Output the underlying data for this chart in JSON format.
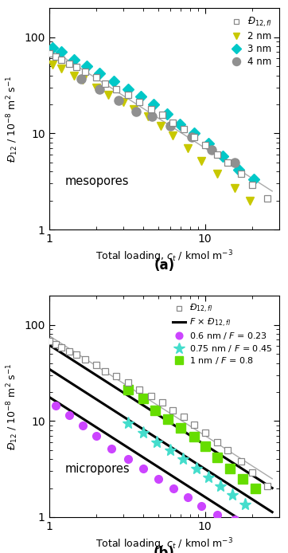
{
  "panel_a": {
    "annotation": "mesopores",
    "fl_x": [
      1.0,
      1.1,
      1.2,
      1.35,
      1.5,
      1.7,
      2.0,
      2.3,
      2.7,
      3.2,
      3.8,
      4.5,
      5.3,
      6.2,
      7.3,
      8.5,
      10.0,
      12.0,
      14.0,
      17.0,
      20.0,
      25.0
    ],
    "fl_y": [
      68,
      63,
      58,
      53,
      49,
      44,
      38,
      33,
      29,
      25,
      21,
      18,
      15.5,
      13.0,
      11.0,
      9.2,
      7.5,
      6.0,
      5.0,
      3.8,
      2.9,
      2.1
    ],
    "nm2_x": [
      1.05,
      1.2,
      1.45,
      1.65,
      2.0,
      2.4,
      3.0,
      3.5,
      4.3,
      5.2,
      6.2,
      7.8,
      9.5,
      12.0,
      15.5,
      19.5
    ],
    "nm2_y": [
      52,
      47,
      40,
      36,
      30,
      25,
      21,
      18,
      15,
      12,
      9.5,
      7.0,
      5.2,
      3.8,
      2.7,
      2.0
    ],
    "nm3_x": [
      1.05,
      1.2,
      1.45,
      1.75,
      2.1,
      2.6,
      3.2,
      3.9,
      4.7,
      5.7,
      6.9,
      8.5,
      10.5,
      13.0,
      16.5,
      20.5
    ],
    "nm3_y": [
      78,
      70,
      58,
      50,
      42,
      35,
      29,
      24,
      20,
      16,
      12.5,
      10.0,
      7.8,
      5.8,
      4.2,
      3.3
    ],
    "nm4_x": [
      1.6,
      2.1,
      2.8,
      3.6,
      4.6,
      6.0,
      8.2,
      11.0,
      15.5
    ],
    "nm4_y": [
      37,
      29,
      22,
      17,
      15,
      12,
      9.2,
      6.8,
      5.0
    ],
    "fl_line_color": "#aaaaaa",
    "fl_marker_color": "#888888",
    "nm2_color": "#c8c800",
    "nm3_color": "#00c8c8",
    "nm4_color": "#909090"
  },
  "panel_b": {
    "annotation": "micropores",
    "fl_x": [
      1.0,
      1.1,
      1.2,
      1.35,
      1.5,
      1.7,
      2.0,
      2.3,
      2.7,
      3.2,
      3.8,
      4.5,
      5.3,
      6.2,
      7.3,
      8.5,
      10.0,
      12.0,
      14.0,
      17.0,
      20.0,
      25.0
    ],
    "fl_y": [
      68,
      63,
      58,
      53,
      49,
      44,
      38,
      33,
      29,
      25,
      21,
      18,
      15.5,
      13.0,
      11.0,
      9.2,
      7.5,
      6.0,
      5.0,
      3.8,
      2.9,
      2.1
    ],
    "F_values": [
      0.8,
      0.45,
      0.23
    ],
    "nm06_x": [
      1.1,
      1.35,
      1.65,
      2.0,
      2.5,
      3.2,
      4.0,
      5.0,
      6.3,
      7.8,
      9.5,
      12.0,
      15.5,
      19.0
    ],
    "nm06_y": [
      14.5,
      11.5,
      9.0,
      7.0,
      5.2,
      4.0,
      3.2,
      2.5,
      2.0,
      1.6,
      1.3,
      1.05,
      0.95,
      0.85
    ],
    "nm075_x": [
      3.2,
      4.0,
      4.9,
      6.0,
      7.2,
      8.8,
      10.5,
      12.5,
      15.0,
      18.0
    ],
    "nm075_y": [
      9.5,
      7.5,
      6.0,
      5.0,
      4.0,
      3.2,
      2.6,
      2.1,
      1.7,
      1.35
    ],
    "nm1_x": [
      3.2,
      4.0,
      4.8,
      5.8,
      7.0,
      8.5,
      10.0,
      12.0,
      14.5,
      17.5,
      21.0
    ],
    "nm1_y": [
      21,
      17,
      13,
      10.5,
      8.5,
      6.8,
      5.5,
      4.2,
      3.2,
      2.5,
      2.0
    ],
    "fl_line_color": "#aaaaaa",
    "fl_marker_color": "#888888",
    "nm06_color": "#cc44ff",
    "nm075_color": "#44ddcc",
    "nm1_color": "#66dd00"
  },
  "ylabel": "Đ$_{12}$ / 10$^{-8}$ m$^2$ s$^{-1}$",
  "xlabel": "Total loading, $c_t$ / kmol m$^{-3}$",
  "xlim": [
    1,
    30
  ],
  "ylim": [
    1,
    200
  ]
}
